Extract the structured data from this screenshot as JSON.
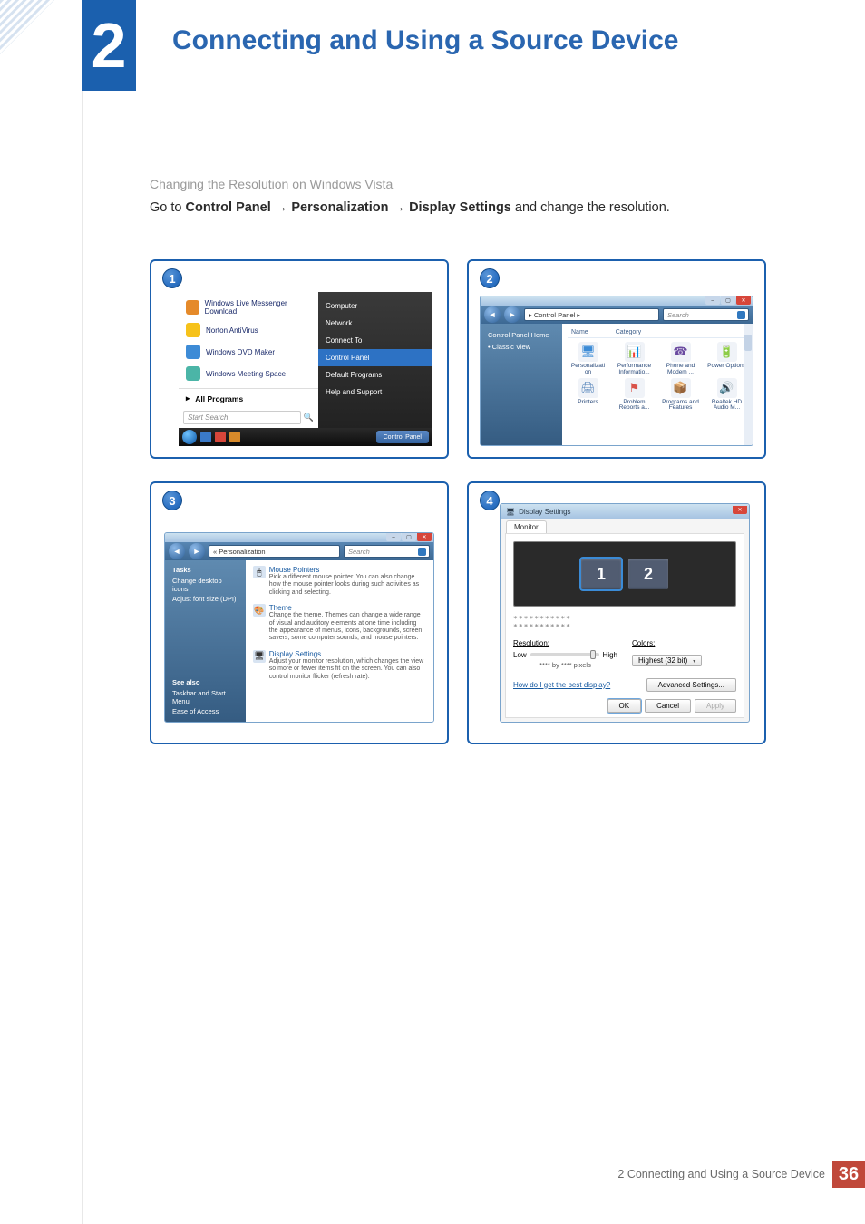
{
  "chapter": {
    "number": "2",
    "title": "Connecting and Using a Source Device"
  },
  "subheading": "Changing the Resolution on Windows Vista",
  "instruction": {
    "prefix": "Go to ",
    "path1": "Control Panel",
    "arrow": " → ",
    "path2": "Personalization",
    "path3": "Display Settings",
    "suffix": " and change the resolution."
  },
  "step1": {
    "badge": "1",
    "left_items": [
      {
        "label": "Windows Live Messenger Download",
        "icon_color": "#e58a2a"
      },
      {
        "label": "Norton AntiVirus",
        "icon_color": "#f6c21a"
      },
      {
        "label": "Windows DVD Maker",
        "icon_color": "#3d8bd6"
      },
      {
        "label": "Windows Meeting Space",
        "icon_color": "#4bb5a7"
      }
    ],
    "all_programs": "All Programs",
    "search_placeholder": "Start Search",
    "right_items": [
      "Computer",
      "Network",
      "Connect To",
      "Control Panel",
      "Default Programs",
      "Help and Support"
    ],
    "right_selected_index": 3,
    "taskbar_btn": "Control Panel"
  },
  "step2": {
    "badge": "2",
    "breadcrumb": "▸ Control Panel ▸",
    "search_placeholder": "Search",
    "side": {
      "home": "Control Panel Home",
      "classic": "Classic View"
    },
    "headers": {
      "name": "Name",
      "category": "Category"
    },
    "items": [
      {
        "label": "Personalizati on",
        "glyph": "🖥",
        "c": "#3b8bd6"
      },
      {
        "label": "Performance Informatio...",
        "glyph": "📊",
        "c": "#2aa06a"
      },
      {
        "label": "Phone and Modem ...",
        "glyph": "☎",
        "c": "#6a4aa0"
      },
      {
        "label": "Power Options",
        "glyph": "🔋",
        "c": "#2a9a4a"
      },
      {
        "label": "Printers",
        "glyph": "🖨",
        "c": "#5080b8"
      },
      {
        "label": "Problem Reports a...",
        "glyph": "⚑",
        "c": "#d9534a"
      },
      {
        "label": "Programs and Features",
        "glyph": "📦",
        "c": "#cc8a2a"
      },
      {
        "label": "Realtek HD Audio M...",
        "glyph": "🔊",
        "c": "#d97a2a"
      }
    ]
  },
  "step3": {
    "badge": "3",
    "breadcrumb": "« Personalization",
    "search_placeholder": "Search",
    "side": {
      "tasks": "Tasks",
      "items": [
        "Change desktop icons",
        "Adjust font size (DPI)"
      ],
      "see_also": "See also",
      "see_items": [
        "Taskbar and Start Menu",
        "Ease of Access"
      ]
    },
    "blocks": [
      {
        "title": "Mouse Pointers",
        "glyph": "🖱",
        "desc": "Pick a different mouse pointer. You can also change how the mouse pointer looks during such activities as clicking and selecting."
      },
      {
        "title": "Theme",
        "glyph": "🎨",
        "desc": "Change the theme. Themes can change a wide range of visual and auditory elements at one time including the appearance of menus, icons, backgrounds, screen savers, some computer sounds, and mouse pointers."
      },
      {
        "title": "Display Settings",
        "glyph": "🖥",
        "desc": "Adjust your monitor resolution, which changes the view so more or fewer items fit on the screen. You can also control monitor flicker (refresh rate)."
      }
    ]
  },
  "step4": {
    "badge": "4",
    "title": "Display Settings",
    "tab": "Monitor",
    "monitors": [
      "1",
      "2"
    ],
    "dropdown_placeholder": "***********\n***********",
    "resolution_label": "Resolution:",
    "low": "Low",
    "high": "High",
    "px_label": "**** by **** pixels",
    "colors_label": "Colors:",
    "colors_value": "Highest (32 bit)",
    "help": "How do I get the best display?",
    "adv_btn": "Advanced Settings...",
    "ok": "OK",
    "cancel": "Cancel",
    "apply": "Apply"
  },
  "footer": {
    "label": "2 Connecting and Using a Source Device",
    "page": "36"
  }
}
